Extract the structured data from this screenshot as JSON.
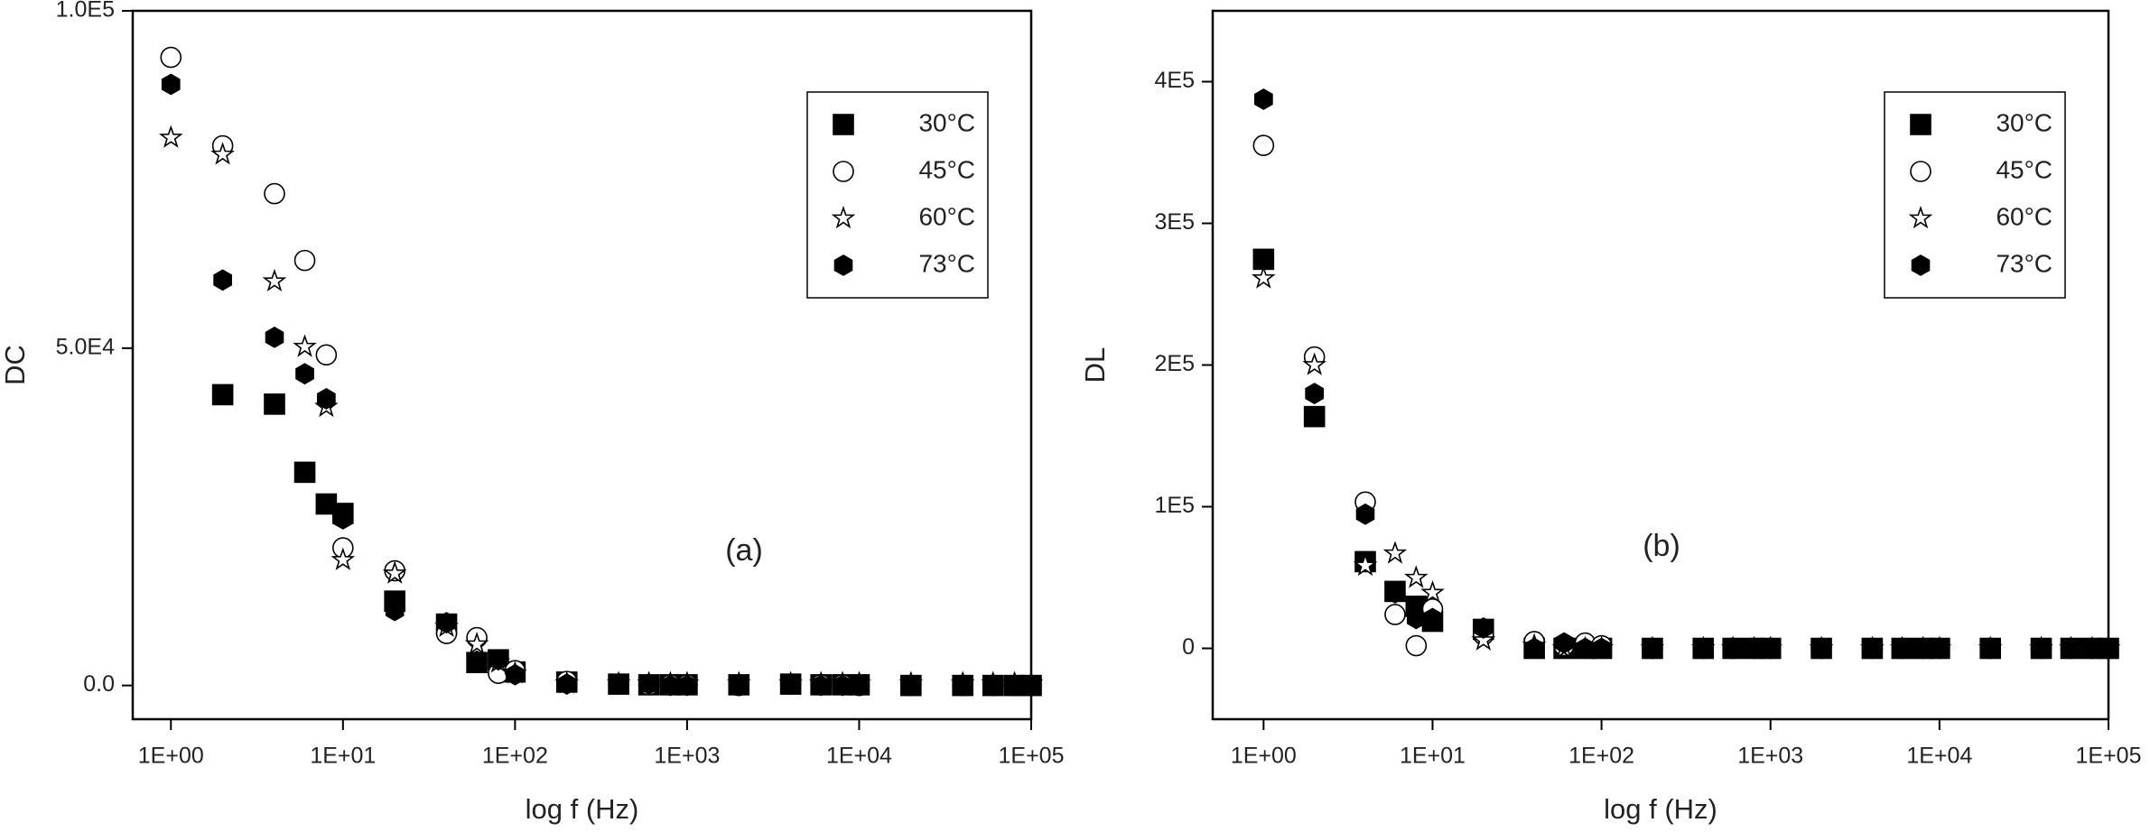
{
  "chart_data": [
    {
      "type": "scatter",
      "xscale": "log",
      "legend": "top-right",
      "xlabel": "log f (Hz)",
      "ylabel": "DC",
      "annotation": "(a)",
      "xlim": [
        0.6,
        100000
      ],
      "ylim": [
        -5000,
        100000
      ],
      "xticks": [
        {
          "value": 1,
          "label": "1E+00"
        },
        {
          "value": 10,
          "label": "1E+01"
        },
        {
          "value": 100,
          "label": "1E+02"
        },
        {
          "value": 1000,
          "label": "1E+03"
        },
        {
          "value": 10000,
          "label": "1E+04"
        },
        {
          "value": 100000,
          "label": "1E+05"
        }
      ],
      "yticks": [
        {
          "value": 0,
          "label": "0.0"
        },
        {
          "value": 50000,
          "label": "5.0E4"
        },
        {
          "value": 100000,
          "label": "1.0E5"
        }
      ],
      "x": [
        1,
        2,
        4,
        6,
        8,
        10,
        20,
        40,
        60,
        80,
        100,
        200,
        400,
        600,
        800,
        1000,
        2000,
        4000,
        6000,
        8000,
        10000,
        20000,
        40000,
        60000,
        80000,
        100000
      ],
      "series": [
        {
          "name": "30°C",
          "color": "#000000",
          "marker": "square",
          "filled": true,
          "values": [
            null,
            43100,
            41700,
            31600,
            26900,
            25500,
            12500,
            9100,
            3400,
            3800,
            2000,
            500,
            200,
            100,
            100,
            100,
            100,
            200,
            100,
            100,
            100,
            0,
            0,
            0,
            0,
            0
          ]
        },
        {
          "name": "45°C",
          "color": "#000000",
          "marker": "circle",
          "filled": false,
          "values": [
            93100,
            80000,
            72900,
            63000,
            49000,
            20400,
            17000,
            7700,
            7100,
            1800,
            2200,
            600,
            200,
            100,
            100,
            100,
            0,
            200,
            100,
            100,
            0,
            0,
            0,
            0,
            0,
            0
          ]
        },
        {
          "name": "60°C",
          "color": "#000000",
          "marker": "star",
          "filled": false,
          "values": [
            81200,
            78700,
            59900,
            50200,
            41300,
            18600,
            16600,
            8700,
            6100,
            3400,
            1800,
            300,
            300,
            300,
            300,
            300,
            300,
            300,
            300,
            300,
            300,
            300,
            300,
            300,
            300,
            300
          ]
        },
        {
          "name": "73°C",
          "color": "#000000",
          "marker": "hexagon",
          "filled": true,
          "values": [
            89100,
            60100,
            51600,
            46200,
            42500,
            24700,
            11100,
            9300,
            3600,
            3800,
            1600,
            200,
            200,
            200,
            0,
            0,
            0,
            200,
            0,
            0,
            0,
            0,
            0,
            0,
            0,
            0
          ]
        }
      ]
    },
    {
      "type": "scatter",
      "xscale": "log",
      "legend": "top-right",
      "xlabel": "log f (Hz)",
      "ylabel": "DL",
      "annotation": "(b)",
      "xlim": [
        0.5,
        100000
      ],
      "ylim": [
        -50000,
        450000
      ],
      "xticks": [
        {
          "value": 1,
          "label": "1E+00"
        },
        {
          "value": 10,
          "label": "1E+01"
        },
        {
          "value": 100,
          "label": "1E+02"
        },
        {
          "value": 1000,
          "label": "1E+03"
        },
        {
          "value": 10000,
          "label": "1E+04"
        },
        {
          "value": 100000,
          "label": "1E+05"
        }
      ],
      "yticks": [
        0,
        {
          "value": 100000,
          "label": "1E5"
        },
        {
          "value": 200000,
          "label": "2E5"
        },
        {
          "value": 300000,
          "label": "3E5"
        },
        {
          "value": 400000,
          "label": "4E5"
        }
      ],
      "x": [
        1,
        2,
        4,
        6,
        8,
        10,
        20,
        40,
        60,
        80,
        100,
        200,
        400,
        600,
        800,
        1000,
        2000,
        4000,
        6000,
        8000,
        10000,
        20000,
        40000,
        60000,
        80000,
        100000
      ],
      "series": [
        {
          "name": "30°C",
          "color": "#000000",
          "marker": "square",
          "filled": true,
          "values": [
            274600,
            163600,
            61200,
            40200,
            29700,
            19100,
            13400,
            0,
            0,
            0,
            0,
            0,
            0,
            0,
            0,
            0,
            0,
            0,
            0,
            0,
            0,
            0,
            0,
            0,
            0,
            0
          ]
        },
        {
          "name": "45°C",
          "color": "#000000",
          "marker": "circle",
          "filled": false,
          "values": [
            355000,
            205700,
            103300,
            23900,
            1900,
            27800,
            9600,
            4800,
            1900,
            3800,
            1900,
            0,
            0,
            0,
            0,
            0,
            0,
            0,
            0,
            0,
            0,
            0,
            0,
            0,
            0,
            0
          ]
        },
        {
          "name": "60°C",
          "color": "#000000",
          "marker": "star",
          "filled": false,
          "values": [
            261200,
            200000,
            58400,
            67000,
            49800,
            39200,
            5700,
            1900,
            0,
            0,
            0,
            0,
            0,
            0,
            0,
            0,
            0,
            0,
            0,
            0,
            0,
            0,
            0,
            0,
            0,
            0
          ]
        },
        {
          "name": "73°C",
          "color": "#000000",
          "marker": "hexagon",
          "filled": true,
          "values": [
            387600,
            179900,
            94700,
            39200,
            21100,
            21100,
            14400,
            0,
            3800,
            0,
            0,
            0,
            0,
            0,
            0,
            0,
            0,
            0,
            0,
            0,
            0,
            0,
            0,
            0,
            0,
            0
          ]
        }
      ]
    }
  ]
}
